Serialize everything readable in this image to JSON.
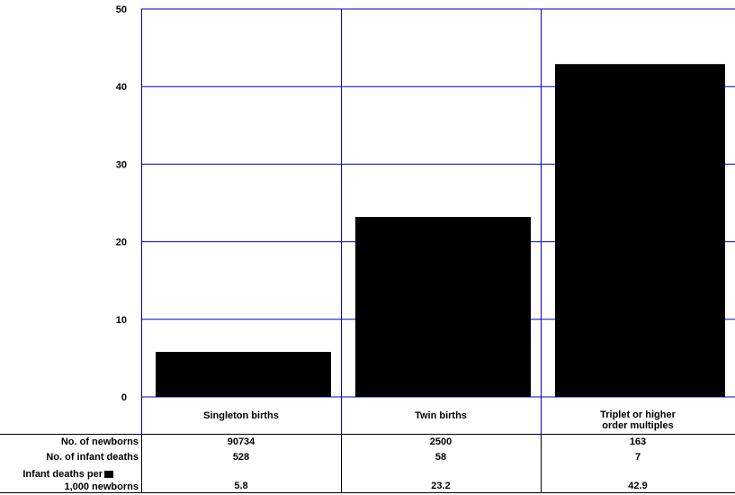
{
  "chart_data": {
    "type": "bar",
    "categories": [
      "Singleton births",
      "Twin births",
      "Triplet or higher order multiples"
    ],
    "category_lines": [
      [
        "Singleton births"
      ],
      [
        "Twin births"
      ],
      [
        "Triplet or higher",
        "order multiples"
      ]
    ],
    "values": [
      5.8,
      23.2,
      42.9
    ],
    "ylim": [
      0,
      50
    ],
    "yticks": [
      0,
      10,
      20,
      30,
      40,
      50
    ],
    "grid": true,
    "bar_color": "#000000",
    "grid_color": "#0000cc"
  },
  "table": {
    "rows": [
      {
        "label_lines": [
          "No. of newborns"
        ],
        "values": [
          "90734",
          "2500",
          "163"
        ]
      },
      {
        "label_lines": [
          "No. of infant deaths"
        ],
        "values": [
          "528",
          "58",
          "7"
        ]
      },
      {
        "label_lines": [
          "Infant deaths per",
          "1,000 newborns"
        ],
        "values": [
          "5.8",
          "23.2",
          "42.9"
        ]
      }
    ]
  }
}
